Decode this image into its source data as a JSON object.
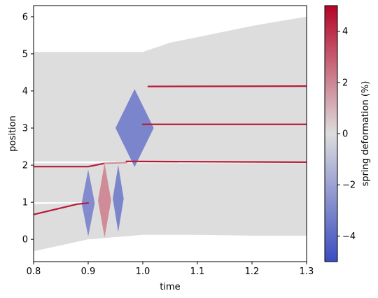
{
  "chart_data": {
    "type": "area",
    "title": "",
    "xlabel": "time",
    "ylabel": "position",
    "xlim": [
      0.8,
      1.3
    ],
    "ylim": [
      -0.6,
      6.3
    ],
    "xticks": [
      "0.8",
      "0.9",
      "1.0",
      "1.1",
      "1.2",
      "1.3"
    ],
    "yticks": [
      "0",
      "1",
      "2",
      "3",
      "4",
      "5",
      "6"
    ],
    "grid": false,
    "colorbar": {
      "label": "spring deformation (%)",
      "min": -5,
      "max": 5,
      "ticks": [
        "4",
        "2",
        "0",
        "−2",
        "−4"
      ],
      "colormap": "coolwarm",
      "colors": {
        "low": "#3b4cc0",
        "mid": "#dddddd",
        "high": "#b40426"
      }
    },
    "bands": [
      {
        "x": [
          0.8,
          0.9,
          1.0,
          1.1,
          1.2,
          1.3
        ],
        "low": [
          -0.32,
          0.0,
          0.12,
          0.12,
          0.1,
          0.1
        ],
        "high": [
          0.95,
          0.98,
          1.1,
          1.2,
          1.3,
          1.45
        ]
      },
      {
        "x": [
          0.8,
          1.0,
          1.3
        ],
        "low": [
          1.0,
          1.0,
          1.0
        ],
        "high": [
          2.05,
          2.05,
          2.05
        ]
      },
      {
        "x": [
          0.8,
          1.3
        ],
        "low": [
          2.1,
          2.1
        ],
        "high": [
          5.05,
          5.05
        ]
      },
      {
        "x": [
          1.0,
          1.05,
          1.1,
          1.15,
          1.2,
          1.25,
          1.3
        ],
        "low": [
          4.1,
          4.3,
          4.5,
          4.65,
          4.8,
          4.95,
          5.05
        ],
        "high": [
          5.05,
          5.3,
          5.45,
          5.6,
          5.75,
          5.88,
          6.0
        ]
      }
    ],
    "trajectories": [
      {
        "x": [
          0.8,
          0.88,
          0.9
        ],
        "y": [
          0.67,
          0.95,
          0.98
        ],
        "deformation": 4.5
      },
      {
        "x": [
          0.8,
          0.9,
          0.93
        ],
        "y": [
          1.96,
          1.96,
          2.05
        ],
        "deformation": 4.5
      },
      {
        "x": [
          0.93,
          0.97
        ],
        "y": [
          2.05,
          2.07
        ],
        "deformation": 1.8
      },
      {
        "x": [
          0.97,
          1.3
        ],
        "y": [
          2.1,
          2.08
        ],
        "deformation": 4.5
      },
      {
        "x": [
          1.0,
          1.3
        ],
        "y": [
          3.1,
          3.1
        ],
        "deformation": 4.5
      },
      {
        "x": [
          1.01,
          1.3
        ],
        "y": [
          4.12,
          4.13
        ],
        "deformation": 4.5
      }
    ],
    "deformation_pulses": [
      {
        "x": 0.9,
        "y": 0.98,
        "half_width": 0.012,
        "half_height": 0.9,
        "deformation": -3.0
      },
      {
        "x": 0.93,
        "y": 1.05,
        "half_width": 0.012,
        "half_height": 1.0,
        "deformation": 2.0
      },
      {
        "x": 0.955,
        "y": 1.1,
        "half_width": 0.01,
        "half_height": 0.9,
        "deformation": -3.2
      },
      {
        "x": 0.985,
        "y": 3.0,
        "half_width": 0.035,
        "half_height": 1.05,
        "deformation": -3.2
      }
    ]
  }
}
